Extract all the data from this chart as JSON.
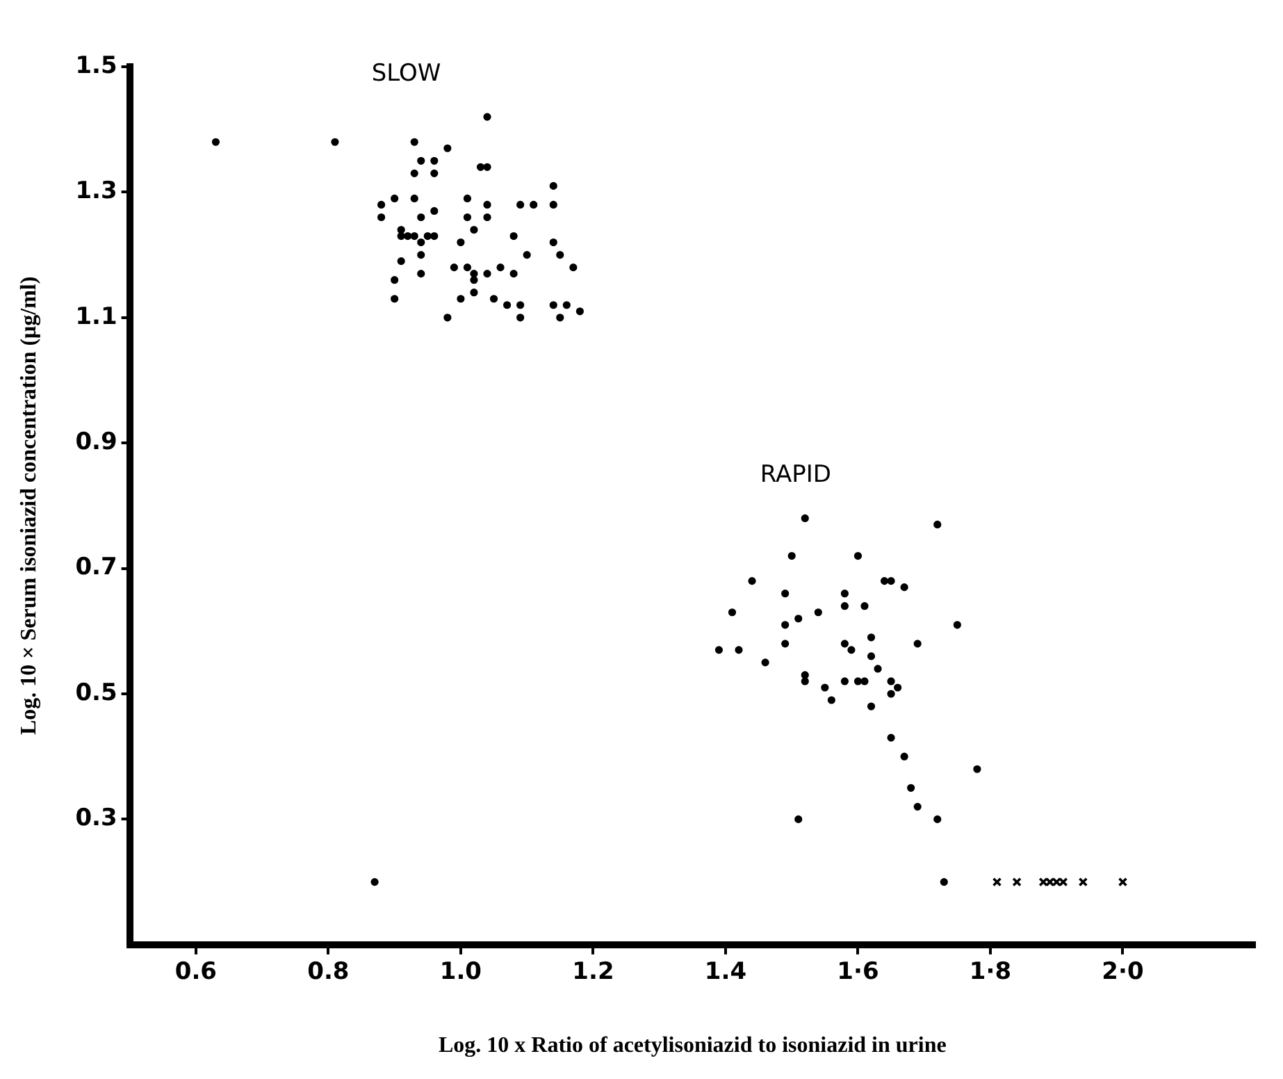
{
  "chart_data": {
    "type": "scatter",
    "xlabel": "Log. 10 x Ratio of acetylisoniazid to isoniazid in urine",
    "ylabel": "Log. 10 × Serum isoniazid concentration (μg/ml)",
    "xlim": [
      0.5,
      2.2
    ],
    "xticks": [
      0.6,
      0.8,
      {
        "value": 1.0,
        "label": "1.0"
      },
      1.2,
      1.4,
      {
        "value": 1.6,
        "label": "1·6"
      },
      {
        "value": 1.8,
        "label": "1·8"
      },
      {
        "value": 2.0,
        "label": "2·0"
      }
    ],
    "ylim": [
      0.1,
      1.5
    ],
    "yticks": [
      0.3,
      0.5,
      0.7,
      0.9,
      1.1,
      1.3,
      1.5
    ],
    "grid": false,
    "legend": false,
    "series": [
      {
        "name": "SLOW",
        "color": "#000000",
        "marker": "circle",
        "x": [
          0.63,
          0.81,
          1.04,
          0.93,
          0.98,
          0.94,
          0.96,
          0.93,
          0.96,
          1.03,
          1.04,
          1.14,
          0.9,
          0.93,
          1.01,
          0.88,
          0.88,
          0.94,
          0.96,
          1.01,
          1.04,
          1.04,
          1.09,
          1.11,
          1.14,
          0.91,
          1.02,
          0.91,
          0.92,
          0.93,
          0.94,
          0.95,
          0.96,
          1.0,
          1.08,
          1.14,
          0.91,
          0.94,
          1.1,
          1.15,
          0.9,
          0.94,
          0.99,
          1.01,
          1.02,
          1.02,
          1.04,
          1.06,
          1.08,
          1.17,
          0.9,
          1.0,
          1.02,
          1.05,
          1.07,
          1.09,
          1.09,
          0.98,
          1.14,
          1.15,
          1.16,
          1.18,
          0.87
        ],
        "values": [
          1.38,
          1.38,
          1.42,
          1.38,
          1.37,
          1.35,
          1.35,
          1.33,
          1.33,
          1.34,
          1.34,
          1.31,
          1.29,
          1.29,
          1.29,
          1.28,
          1.26,
          1.26,
          1.27,
          1.26,
          1.28,
          1.26,
          1.28,
          1.28,
          1.28,
          1.24,
          1.24,
          1.23,
          1.23,
          1.23,
          1.22,
          1.23,
          1.23,
          1.22,
          1.23,
          1.22,
          1.19,
          1.2,
          1.2,
          1.2,
          1.16,
          1.17,
          1.18,
          1.18,
          1.17,
          1.16,
          1.17,
          1.18,
          1.17,
          1.18,
          1.13,
          1.13,
          1.14,
          1.13,
          1.12,
          1.12,
          1.1,
          1.1,
          1.12,
          1.1,
          1.12,
          1.11,
          0.2
        ]
      },
      {
        "name": "RAPID",
        "color": "#000000",
        "marker": "circle",
        "x": [
          1.52,
          1.72,
          1.5,
          1.6,
          1.44,
          1.64,
          1.65,
          1.67,
          1.58,
          1.49,
          1.58,
          1.61,
          1.41,
          1.54,
          1.51,
          1.49,
          1.75,
          1.39,
          1.42,
          1.49,
          1.58,
          1.62,
          1.59,
          1.62,
          1.69,
          1.46,
          1.52,
          1.52,
          1.55,
          1.58,
          1.6,
          1.61,
          1.63,
          1.65,
          1.66,
          1.56,
          1.62,
          1.65,
          1.65,
          1.67,
          1.78,
          1.68,
          1.69,
          1.72,
          1.51,
          1.73
        ],
        "values": [
          0.78,
          0.77,
          0.72,
          0.72,
          0.68,
          0.68,
          0.68,
          0.67,
          0.66,
          0.66,
          0.64,
          0.64,
          0.63,
          0.63,
          0.62,
          0.61,
          0.61,
          0.57,
          0.57,
          0.58,
          0.58,
          0.59,
          0.57,
          0.56,
          0.58,
          0.55,
          0.53,
          0.52,
          0.51,
          0.52,
          0.52,
          0.52,
          0.54,
          0.52,
          0.51,
          0.49,
          0.48,
          0.5,
          0.43,
          0.4,
          0.38,
          0.35,
          0.32,
          0.3,
          0.3,
          0.2
        ]
      },
      {
        "color": "#000000",
        "marker": "cross",
        "x": [
          1.81,
          1.84,
          1.88,
          1.89,
          1.9,
          1.91,
          1.94,
          2.0
        ],
        "values": [
          0.2,
          0.2,
          0.2,
          0.2,
          0.2,
          0.2,
          0.2,
          0.2
        ]
      }
    ]
  }
}
